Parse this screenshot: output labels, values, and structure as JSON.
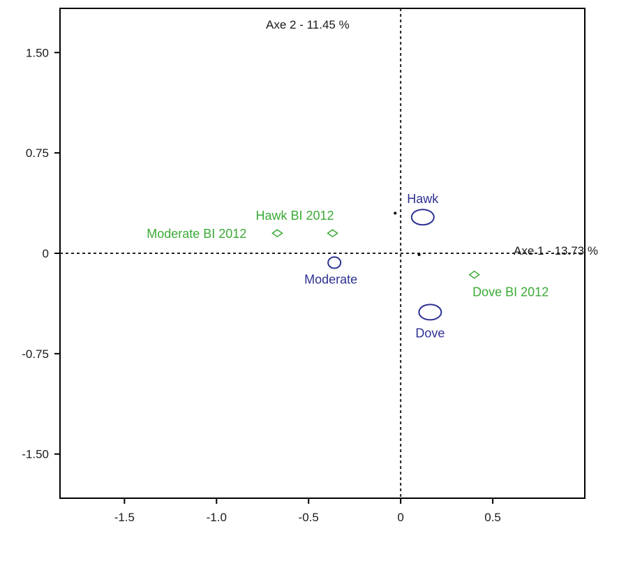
{
  "chart_data": {
    "type": "scatter",
    "title": "",
    "xlim": [
      -1.85,
      1.0
    ],
    "ylim": [
      -1.83,
      1.83
    ],
    "x_ticks": [
      {
        "value": -1.5,
        "label": "-1.5"
      },
      {
        "value": -1.0,
        "label": "-1.0"
      },
      {
        "value": -0.5,
        "label": "-0.5"
      },
      {
        "value": 0,
        "label": "0"
      },
      {
        "value": 0.5,
        "label": "0.5"
      }
    ],
    "y_ticks": [
      {
        "value": 1.5,
        "label": "1.50"
      },
      {
        "value": 0.75,
        "label": "0.75"
      },
      {
        "value": 0,
        "label": "0"
      },
      {
        "value": -0.75,
        "label": "-0.75"
      },
      {
        "value": -1.5,
        "label": "-1.50"
      }
    ],
    "axis1_label": "Axe 1 - 13.73 %",
    "axis2_label": "Axe 2 - 11.45 %",
    "grid": false,
    "series": [
      {
        "color": "#2e3192",
        "marker": "circle",
        "points": [
          {
            "label": "Hawk",
            "x": 0.12,
            "y": 0.27,
            "size": "large"
          },
          {
            "label": "Moderate",
            "x": -0.36,
            "y": -0.07,
            "size": "small"
          },
          {
            "label": "Dove",
            "x": 0.16,
            "y": -0.44,
            "size": "large"
          }
        ]
      },
      {
        "color": "#3aaa35",
        "marker": "diamond",
        "points": [
          {
            "label": "Moderate BI 2012",
            "x": -0.67,
            "y": 0.15
          },
          {
            "label": "Hawk BI 2012",
            "x": -0.37,
            "y": 0.15
          },
          {
            "label": "Dove BI 2012",
            "x": 0.4,
            "y": -0.16
          }
        ]
      }
    ],
    "origin_dots": [
      {
        "x": -0.03,
        "y": 0.3
      },
      {
        "x": 0.1,
        "y": -0.01
      }
    ]
  }
}
